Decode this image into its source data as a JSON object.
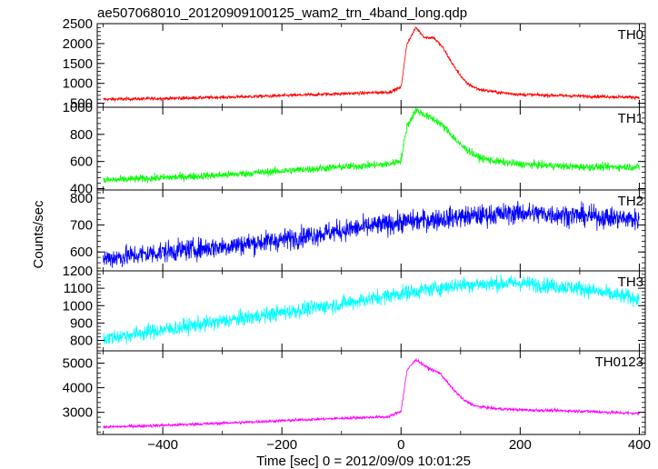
{
  "title": "ae507068010_20120909100125_wam2_trn_4band_long.qdp",
  "ylabel": "Counts/sec",
  "xlabel": "Time [sec] 0 = 2012/09/09 10:01:25",
  "x_ticks": [
    -400,
    -200,
    0,
    200,
    400
  ],
  "chart_data": [
    {
      "type": "line",
      "name": "TH0",
      "color": "#ff0000",
      "xlim": [
        -510,
        410
      ],
      "ylim": [
        400,
        2500
      ],
      "y_ticks": [
        500,
        1000,
        1500,
        2000,
        2500
      ],
      "x": [
        -500,
        -400,
        -300,
        -200,
        -100,
        -20,
        0,
        10,
        25,
        40,
        55,
        70,
        90,
        110,
        130,
        160,
        200,
        300,
        400
      ],
      "y": [
        600,
        620,
        650,
        690,
        740,
        780,
        900,
        2000,
        2400,
        2150,
        2150,
        1900,
        1400,
        1000,
        850,
        780,
        720,
        680,
        650
      ],
      "noise": 30
    },
    {
      "type": "line",
      "name": "TH1",
      "color": "#00ff00",
      "xlim": [
        -510,
        410
      ],
      "ylim": [
        390,
        1000
      ],
      "y_ticks": [
        400,
        600,
        800,
        1000
      ],
      "x": [
        -500,
        -400,
        -300,
        -200,
        -100,
        -20,
        0,
        10,
        25,
        45,
        60,
        80,
        100,
        130,
        160,
        200,
        300,
        400
      ],
      "y": [
        460,
        480,
        500,
        530,
        560,
        580,
        610,
        860,
        980,
        930,
        900,
        820,
        720,
        630,
        600,
        580,
        560,
        560
      ],
      "noise": 20
    },
    {
      "type": "line",
      "name": "TH2",
      "color": "#0000ff",
      "xlim": [
        -510,
        410
      ],
      "ylim": [
        530,
        830
      ],
      "y_ticks": [
        600,
        700,
        800
      ],
      "x": [
        -500,
        -400,
        -300,
        -200,
        -100,
        0,
        100,
        200,
        300,
        400
      ],
      "y": [
        575,
        600,
        620,
        645,
        680,
        710,
        730,
        745,
        735,
        720
      ],
      "noise": 28
    },
    {
      "type": "line",
      "name": "TH3",
      "color": "#00ffff",
      "xlim": [
        -510,
        410
      ],
      "ylim": [
        740,
        1200
      ],
      "y_ticks": [
        800,
        900,
        1000,
        1100,
        1200
      ],
      "x": [
        -500,
        -400,
        -300,
        -200,
        -100,
        0,
        100,
        200,
        300,
        360,
        400
      ],
      "y": [
        810,
        860,
        910,
        960,
        1010,
        1070,
        1120,
        1130,
        1100,
        1060,
        1040
      ],
      "noise": 32
    },
    {
      "type": "line",
      "name": "TH0123",
      "color": "#ff00ff",
      "xlim": [
        -510,
        410
      ],
      "ylim": [
        2100,
        5500
      ],
      "y_ticks": [
        3000,
        4000,
        5000
      ],
      "x": [
        -500,
        -400,
        -300,
        -200,
        -100,
        -20,
        0,
        10,
        25,
        45,
        65,
        85,
        105,
        125,
        160,
        200,
        300,
        400
      ],
      "y": [
        2400,
        2470,
        2560,
        2660,
        2760,
        2820,
        3050,
        4700,
        5150,
        4800,
        4600,
        4000,
        3500,
        3250,
        3150,
        3100,
        3050,
        2950
      ],
      "noise": 45
    }
  ]
}
